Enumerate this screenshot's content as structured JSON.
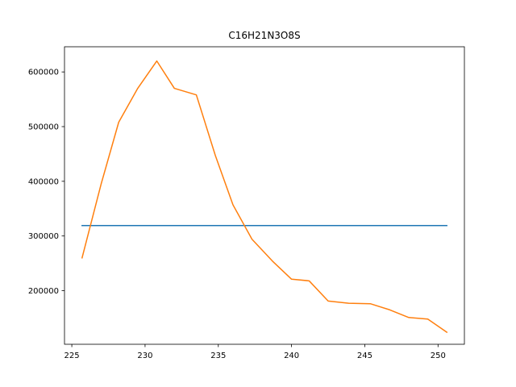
{
  "chart_data": {
    "type": "line",
    "title": "C16H21N3O8S",
    "xlabel": "",
    "ylabel": "",
    "xlim": [
      224.5,
      251.8
    ],
    "ylim": [
      102000,
      646000
    ],
    "x_ticks": [
      225,
      230,
      235,
      240,
      245,
      250
    ],
    "y_ticks": [
      200000,
      300000,
      400000,
      500000,
      600000
    ],
    "x_tick_labels": [
      "225",
      "230",
      "235",
      "240",
      "245",
      "250"
    ],
    "y_tick_labels": [
      "200000",
      "300000",
      "400000",
      "500000",
      "600000"
    ],
    "grid": false,
    "series": [
      {
        "color": "#1f77b4",
        "x": [
          225.7,
          250.6
        ],
        "y": [
          319000,
          319000
        ]
      },
      {
        "color": "#ff7f0e",
        "x": [
          225.7,
          227.0,
          228.2,
          229.5,
          230.8,
          232.0,
          233.5,
          234.8,
          236.0,
          237.3,
          238.7,
          240.0,
          241.2,
          242.5,
          243.9,
          245.4,
          246.7,
          248.0,
          249.3,
          250.6
        ],
        "y": [
          260000,
          395000,
          508000,
          570000,
          620000,
          570000,
          558000,
          447000,
          357000,
          294000,
          254000,
          221000,
          218000,
          181000,
          177000,
          176000,
          165000,
          151000,
          148000,
          124000
        ]
      }
    ]
  }
}
